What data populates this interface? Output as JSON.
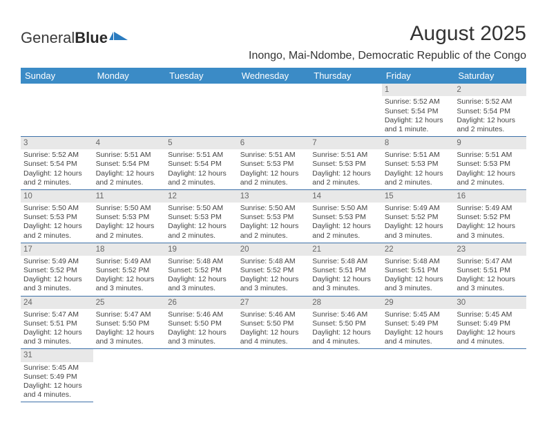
{
  "logo": {
    "part1": "General",
    "part2": "Blue"
  },
  "title": "August 2025",
  "location": "Inongo, Mai-Ndombe, Democratic Republic of the Congo",
  "weekdays": [
    "Sunday",
    "Monday",
    "Tuesday",
    "Wednesday",
    "Thursday",
    "Friday",
    "Saturday"
  ],
  "colors": {
    "header_bg": "#3b8bc6",
    "header_text": "#ffffff",
    "daynum_bg": "#e8e8e8",
    "cell_border": "#3b6fa8",
    "logo_accent": "#2a7bbf"
  },
  "weeks": [
    [
      null,
      null,
      null,
      null,
      null,
      {
        "n": "1",
        "sunrise": "Sunrise: 5:52 AM",
        "sunset": "Sunset: 5:54 PM",
        "daylight": "Daylight: 12 hours and 1 minute."
      },
      {
        "n": "2",
        "sunrise": "Sunrise: 5:52 AM",
        "sunset": "Sunset: 5:54 PM",
        "daylight": "Daylight: 12 hours and 2 minutes."
      }
    ],
    [
      {
        "n": "3",
        "sunrise": "Sunrise: 5:52 AM",
        "sunset": "Sunset: 5:54 PM",
        "daylight": "Daylight: 12 hours and 2 minutes."
      },
      {
        "n": "4",
        "sunrise": "Sunrise: 5:51 AM",
        "sunset": "Sunset: 5:54 PM",
        "daylight": "Daylight: 12 hours and 2 minutes."
      },
      {
        "n": "5",
        "sunrise": "Sunrise: 5:51 AM",
        "sunset": "Sunset: 5:54 PM",
        "daylight": "Daylight: 12 hours and 2 minutes."
      },
      {
        "n": "6",
        "sunrise": "Sunrise: 5:51 AM",
        "sunset": "Sunset: 5:53 PM",
        "daylight": "Daylight: 12 hours and 2 minutes."
      },
      {
        "n": "7",
        "sunrise": "Sunrise: 5:51 AM",
        "sunset": "Sunset: 5:53 PM",
        "daylight": "Daylight: 12 hours and 2 minutes."
      },
      {
        "n": "8",
        "sunrise": "Sunrise: 5:51 AM",
        "sunset": "Sunset: 5:53 PM",
        "daylight": "Daylight: 12 hours and 2 minutes."
      },
      {
        "n": "9",
        "sunrise": "Sunrise: 5:51 AM",
        "sunset": "Sunset: 5:53 PM",
        "daylight": "Daylight: 12 hours and 2 minutes."
      }
    ],
    [
      {
        "n": "10",
        "sunrise": "Sunrise: 5:50 AM",
        "sunset": "Sunset: 5:53 PM",
        "daylight": "Daylight: 12 hours and 2 minutes."
      },
      {
        "n": "11",
        "sunrise": "Sunrise: 5:50 AM",
        "sunset": "Sunset: 5:53 PM",
        "daylight": "Daylight: 12 hours and 2 minutes."
      },
      {
        "n": "12",
        "sunrise": "Sunrise: 5:50 AM",
        "sunset": "Sunset: 5:53 PM",
        "daylight": "Daylight: 12 hours and 2 minutes."
      },
      {
        "n": "13",
        "sunrise": "Sunrise: 5:50 AM",
        "sunset": "Sunset: 5:53 PM",
        "daylight": "Daylight: 12 hours and 2 minutes."
      },
      {
        "n": "14",
        "sunrise": "Sunrise: 5:50 AM",
        "sunset": "Sunset: 5:53 PM",
        "daylight": "Daylight: 12 hours and 2 minutes."
      },
      {
        "n": "15",
        "sunrise": "Sunrise: 5:49 AM",
        "sunset": "Sunset: 5:52 PM",
        "daylight": "Daylight: 12 hours and 3 minutes."
      },
      {
        "n": "16",
        "sunrise": "Sunrise: 5:49 AM",
        "sunset": "Sunset: 5:52 PM",
        "daylight": "Daylight: 12 hours and 3 minutes."
      }
    ],
    [
      {
        "n": "17",
        "sunrise": "Sunrise: 5:49 AM",
        "sunset": "Sunset: 5:52 PM",
        "daylight": "Daylight: 12 hours and 3 minutes."
      },
      {
        "n": "18",
        "sunrise": "Sunrise: 5:49 AM",
        "sunset": "Sunset: 5:52 PM",
        "daylight": "Daylight: 12 hours and 3 minutes."
      },
      {
        "n": "19",
        "sunrise": "Sunrise: 5:48 AM",
        "sunset": "Sunset: 5:52 PM",
        "daylight": "Daylight: 12 hours and 3 minutes."
      },
      {
        "n": "20",
        "sunrise": "Sunrise: 5:48 AM",
        "sunset": "Sunset: 5:52 PM",
        "daylight": "Daylight: 12 hours and 3 minutes."
      },
      {
        "n": "21",
        "sunrise": "Sunrise: 5:48 AM",
        "sunset": "Sunset: 5:51 PM",
        "daylight": "Daylight: 12 hours and 3 minutes."
      },
      {
        "n": "22",
        "sunrise": "Sunrise: 5:48 AM",
        "sunset": "Sunset: 5:51 PM",
        "daylight": "Daylight: 12 hours and 3 minutes."
      },
      {
        "n": "23",
        "sunrise": "Sunrise: 5:47 AM",
        "sunset": "Sunset: 5:51 PM",
        "daylight": "Daylight: 12 hours and 3 minutes."
      }
    ],
    [
      {
        "n": "24",
        "sunrise": "Sunrise: 5:47 AM",
        "sunset": "Sunset: 5:51 PM",
        "daylight": "Daylight: 12 hours and 3 minutes."
      },
      {
        "n": "25",
        "sunrise": "Sunrise: 5:47 AM",
        "sunset": "Sunset: 5:50 PM",
        "daylight": "Daylight: 12 hours and 3 minutes."
      },
      {
        "n": "26",
        "sunrise": "Sunrise: 5:46 AM",
        "sunset": "Sunset: 5:50 PM",
        "daylight": "Daylight: 12 hours and 3 minutes."
      },
      {
        "n": "27",
        "sunrise": "Sunrise: 5:46 AM",
        "sunset": "Sunset: 5:50 PM",
        "daylight": "Daylight: 12 hours and 4 minutes."
      },
      {
        "n": "28",
        "sunrise": "Sunrise: 5:46 AM",
        "sunset": "Sunset: 5:50 PM",
        "daylight": "Daylight: 12 hours and 4 minutes."
      },
      {
        "n": "29",
        "sunrise": "Sunrise: 5:45 AM",
        "sunset": "Sunset: 5:49 PM",
        "daylight": "Daylight: 12 hours and 4 minutes."
      },
      {
        "n": "30",
        "sunrise": "Sunrise: 5:45 AM",
        "sunset": "Sunset: 5:49 PM",
        "daylight": "Daylight: 12 hours and 4 minutes."
      }
    ],
    [
      {
        "n": "31",
        "sunrise": "Sunrise: 5:45 AM",
        "sunset": "Sunset: 5:49 PM",
        "daylight": "Daylight: 12 hours and 4 minutes."
      },
      null,
      null,
      null,
      null,
      null,
      null
    ]
  ]
}
